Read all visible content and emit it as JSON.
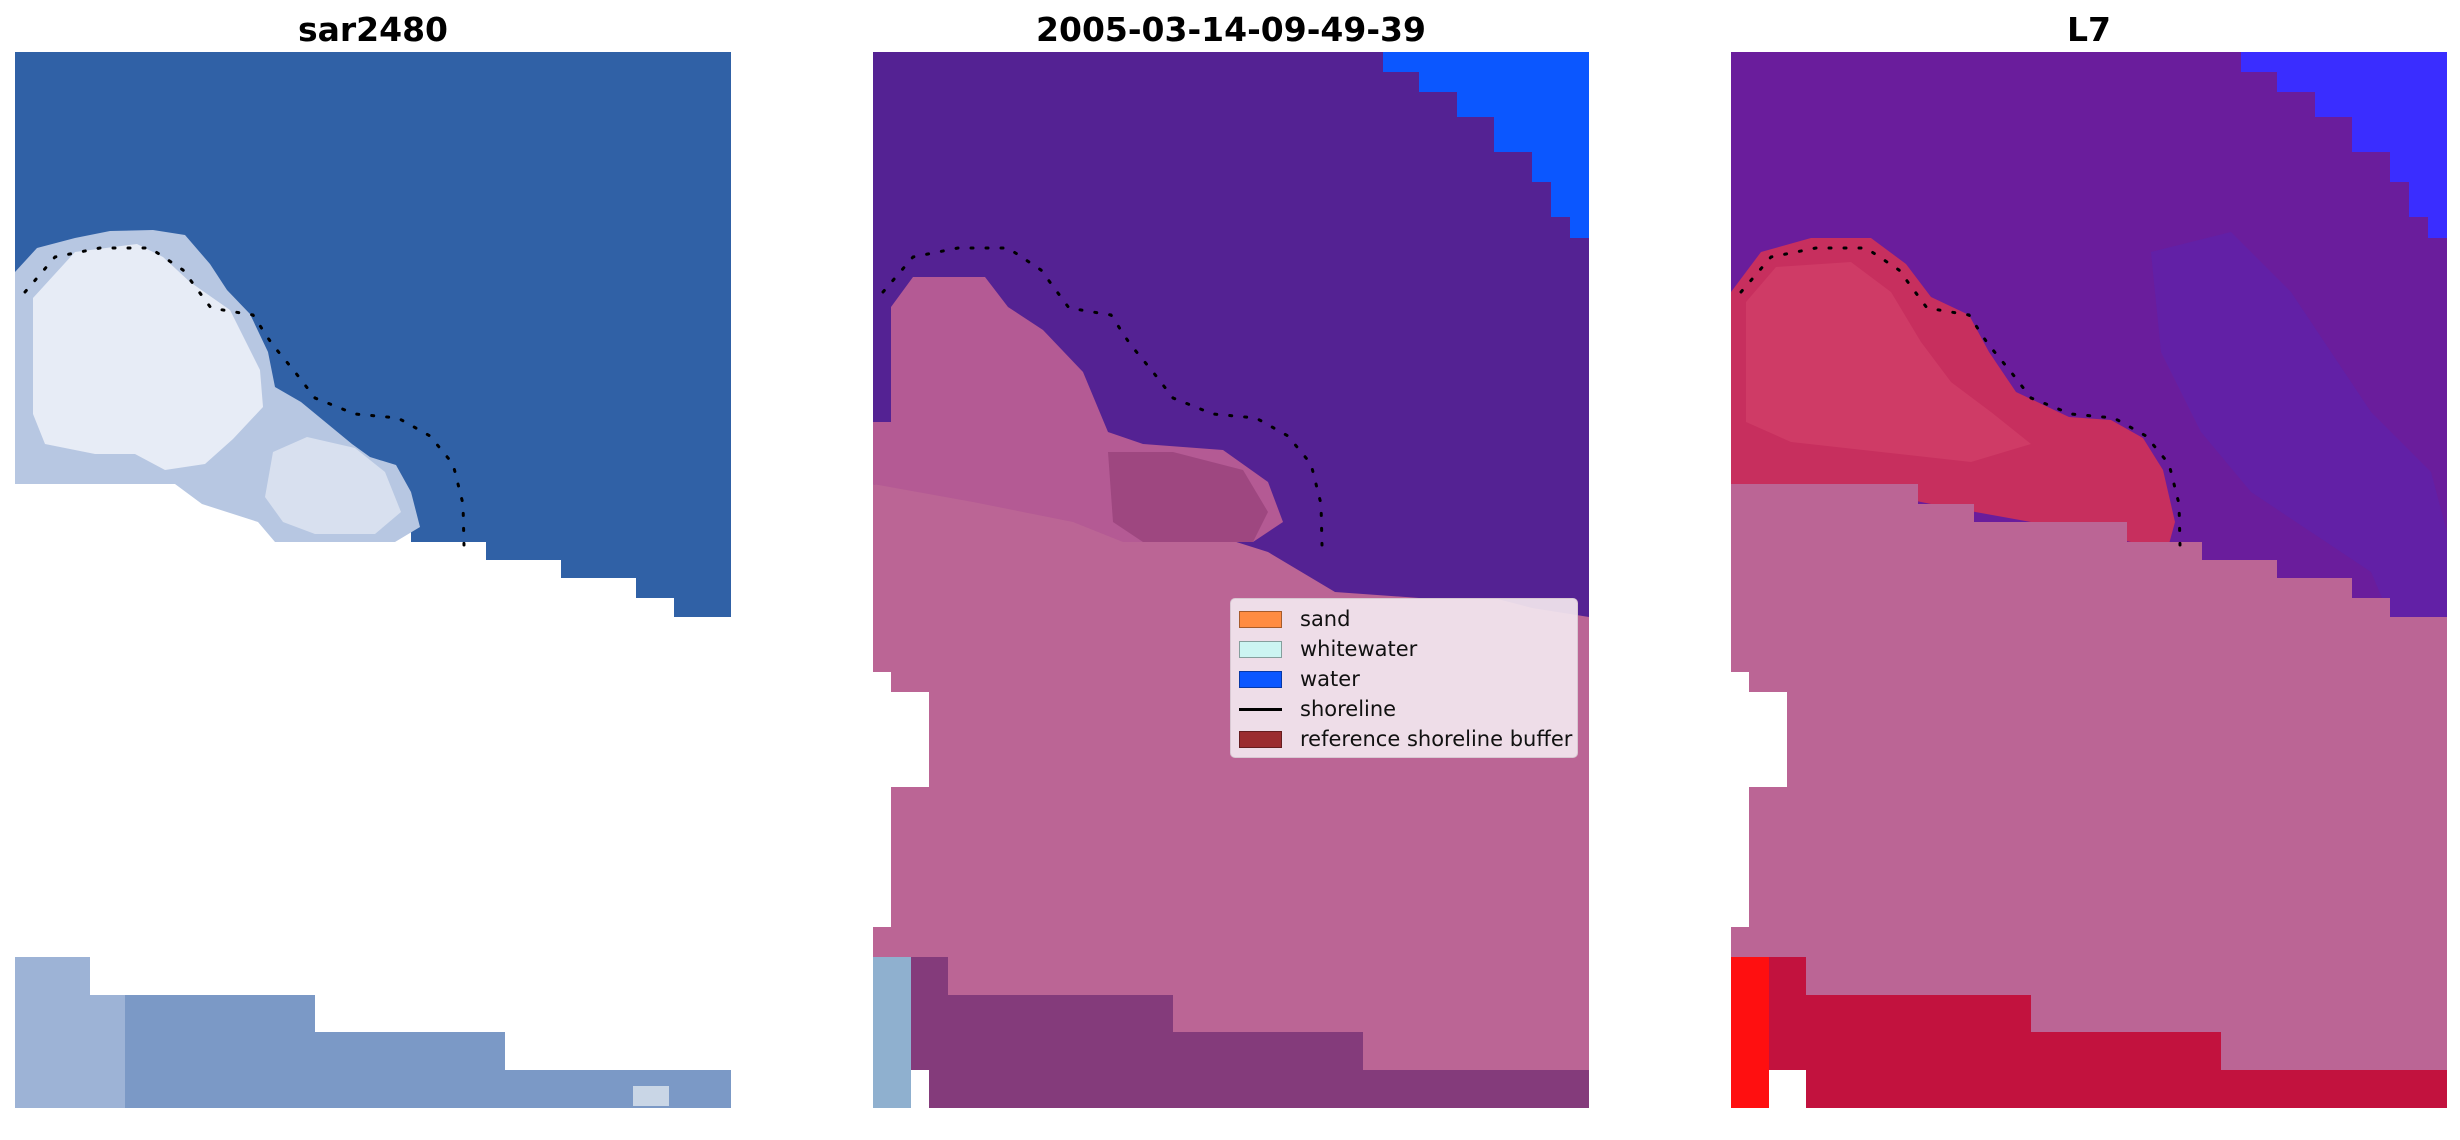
{
  "panels": [
    {
      "title": "sar2480"
    },
    {
      "title": "2005-03-14-09-49-39"
    },
    {
      "title": "L7"
    }
  ],
  "legend": {
    "items": [
      {
        "label": "sand",
        "color": "#ff8c42",
        "kind": "patch"
      },
      {
        "label": "whitewater",
        "color": "#ccf5f2",
        "kind": "patch"
      },
      {
        "label": "water",
        "color": "#0b57ff",
        "kind": "patch"
      },
      {
        "label": "shoreline",
        "color": "#000000",
        "kind": "line"
      },
      {
        "label": "reference shoreline buffer",
        "color": "#9b2d30",
        "kind": "patch"
      }
    ]
  },
  "colors": {
    "ocean_rgb": "#3061a6",
    "surf_rgb": "#e8eef8",
    "class_water_overlay": "#542293",
    "class_sand_overlay": "#bb6595",
    "class_water_pure": "#0b57ff",
    "prob_water": "#6a1d9c",
    "prob_land": "#c72f5e",
    "prob_water_pure": "#3a2dff",
    "prob_land_pure": "#ff0f10"
  }
}
